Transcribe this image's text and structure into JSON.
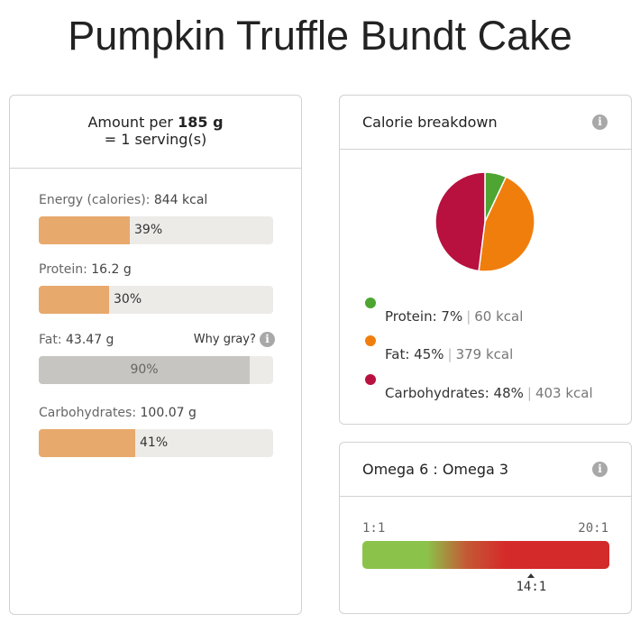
{
  "page": {
    "title": "Pumpkin Truffle Bundt Cake"
  },
  "amount": {
    "prefix": "Amount per ",
    "weight": "185 g",
    "servings": "= 1 serving(s)"
  },
  "nutrients": [
    {
      "label": "Energy (calories): ",
      "value": "844 kcal",
      "percent": "39%",
      "fraction": 0.39,
      "gray": false
    },
    {
      "label": "Protein: ",
      "value": "16.2 g",
      "percent": "30%",
      "fraction": 0.3,
      "gray": false
    },
    {
      "label": "Fat: ",
      "value": "43.47 g",
      "percent": "90%",
      "fraction": 0.9,
      "gray": true
    },
    {
      "label": "Carbohydrates: ",
      "value": "100.07 g",
      "percent": "41%",
      "fraction": 0.41,
      "gray": false
    }
  ],
  "why_gray": "Why gray?",
  "info_icon_glyph": "i",
  "calorie_breakdown": {
    "title": "Calorie breakdown",
    "items": [
      {
        "name": "Protein: 7%",
        "kcal": "60 kcal",
        "percent": 7,
        "color": "#4ea532"
      },
      {
        "name": "Fat: 45%",
        "kcal": "379 kcal",
        "percent": 45,
        "color": "#f07e0d"
      },
      {
        "name": "Carbohydrates: 48%",
        "kcal": "403 kcal",
        "percent": 48,
        "color": "#b8113f"
      }
    ],
    "separator": "|"
  },
  "omega": {
    "title": "Omega 6 : Omega 3",
    "scale_min": "1:1",
    "scale_max": "20:1",
    "value_label": "14:1",
    "ratio": 14,
    "ratio_min": 1,
    "ratio_max": 20
  }
}
